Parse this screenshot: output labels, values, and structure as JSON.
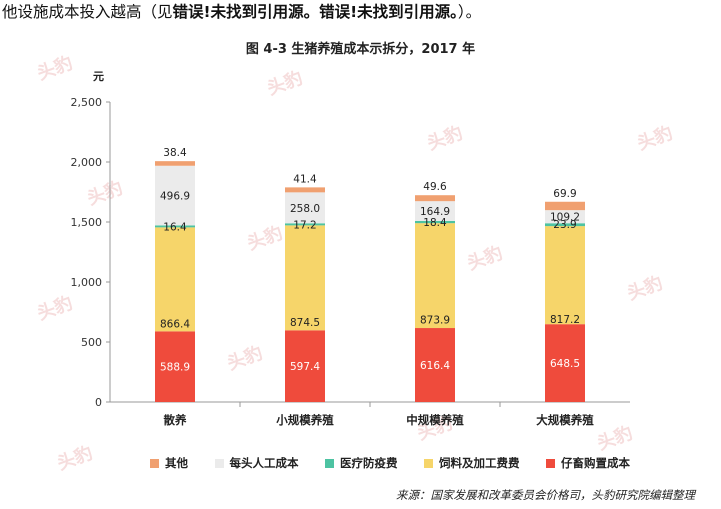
{
  "intro": {
    "prefix": "他设施成本投入越高（见",
    "error1": "错误!未找到引用源。",
    "error2": "错误!未找到引用源。",
    "suffix": "）。"
  },
  "source": "来源：国家发展和改革委员会价格司，头豹研究院编辑整理",
  "watermark": "头豹",
  "colors": {
    "其他": "#F0A070",
    "每头人工成本": "#EBEBEB",
    "医疗防疫费": "#4DC3A2",
    "饲料及加工费费": "#F6D56A",
    "仔畜购置成本": "#EF4B3C"
  },
  "chart_data": {
    "type": "bar",
    "stacked": true,
    "title": "图 4-3 生猪养殖成本示拆分，2017 年",
    "xlabel": "",
    "ylabel": "元",
    "ylim": [
      0,
      2500
    ],
    "yticks": [
      0,
      500,
      1000,
      1500,
      2000,
      2500
    ],
    "ytick_labels": [
      "0",
      "500",
      "1,000",
      "1,500",
      "2,000",
      "2,500"
    ],
    "categories": [
      "散养",
      "小规模养殖",
      "中规模养殖",
      "大规模养殖"
    ],
    "legend_position": "bottom",
    "series": [
      {
        "name": "仔畜购置成本",
        "values": [
          588.9,
          597.4,
          616.4,
          648.5
        ]
      },
      {
        "name": "饲料及加工费费",
        "values": [
          866.4,
          874.5,
          873.9,
          817.2
        ]
      },
      {
        "name": "医疗防疫费",
        "values": [
          16.4,
          17.2,
          18.4,
          23.9
        ]
      },
      {
        "name": "每头人工成本",
        "values": [
          496.9,
          258.0,
          164.9,
          109.2
        ]
      },
      {
        "name": "其他",
        "values": [
          38.4,
          41.4,
          49.6,
          69.9
        ]
      }
    ],
    "value_labels": [
      [
        "588.9",
        "866.4",
        "16.4",
        "496.9",
        "38.4"
      ],
      [
        "597.4",
        "874.5",
        "17.2",
        "258.0",
        "41.4"
      ],
      [
        "616.4",
        "873.9",
        "18.4",
        "164.9",
        "49.6"
      ],
      [
        "648.5",
        "817.2",
        "23.9",
        "109.2",
        "69.9"
      ]
    ],
    "legend_order": [
      "其他",
      "每头人工成本",
      "医疗防疫费",
      "饲料及加工费费",
      "仔畜购置成本"
    ]
  }
}
